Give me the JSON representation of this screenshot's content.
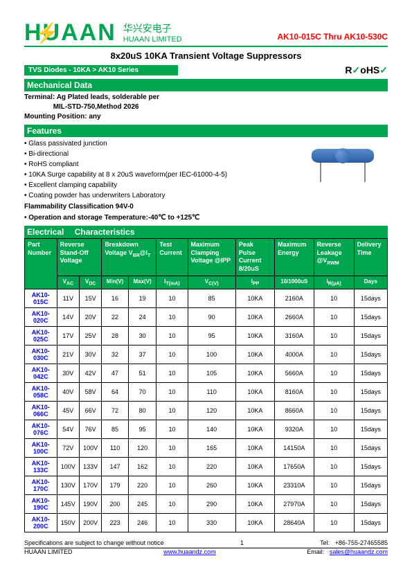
{
  "header": {
    "logo_main": "HUAAN",
    "logo_cn": "华兴安电子",
    "logo_en": "HUAAN LIMITED",
    "product_range": "AK10-015C Thru AK10-530C"
  },
  "title": "8x20uS 10KA Transient Voltage Suppressors",
  "breadcrumb": "TVS Diodes -    10KA > AK10 Series",
  "rohs": {
    "r": "R",
    "o": "o",
    "hs": "HS",
    "check1": "✓",
    "check2": "✓"
  },
  "sections": {
    "mechanical": {
      "title": "Mechanical Data",
      "terminal_label": "Terminal: ",
      "terminal": "Ag Plated leads, solderable per",
      "terminal_spec": "MIL-STD-750,Method 2026",
      "mounting_label": "Mounting Position: ",
      "mounting": "any"
    },
    "features": {
      "title": "Features",
      "items": [
        "Glass passivated junction",
        "Bi-directional",
        "RoHS compliant",
        "10KA Surge capability at 8 x 20uS waveform(per IEC-61000-4-5)",
        "Excellent clamping capability",
        "Coating powder has underwriters Laboratory"
      ],
      "flammability": "Flammability Classification 94V-0",
      "temperature": "Operation and storage Temperature:-40℃ to +125℃"
    },
    "electrical": {
      "title1": "Electrical",
      "title2": "Characteristics"
    }
  },
  "table": {
    "headers": {
      "part": "Part   Number",
      "reverse": "Reverse Stand-Off Voltage",
      "breakdown": "Breakdown Voltage VBR@IT",
      "test": "Test Current",
      "clamp": "Maximum Clamping Voltage @IPP",
      "peak": "Peak Pulse Current 8/20uS",
      "energy": "Maximum Energy",
      "leakage": "Reverse Leakage @VRWM",
      "delivery": "Delivery Time"
    },
    "subheaders": [
      "VAC",
      "VDC",
      "Min(V)",
      "Max(V)",
      "IT(mA)",
      "VC(V)",
      "IPP",
      "10/1000uS",
      "IR(μA)",
      "Days"
    ],
    "rows": [
      {
        "pn": "AK10-015C",
        "vac": "11V",
        "vdc": "15V",
        "min": "16",
        "max": "19",
        "it": "10",
        "vc": "85",
        "ipp": "10KA",
        "e": "2160A",
        "ir": "10",
        "d": "15days"
      },
      {
        "pn": "AK10-020C",
        "vac": "14V",
        "vdc": "20V",
        "min": "22",
        "max": "24",
        "it": "10",
        "vc": "90",
        "ipp": "10KA",
        "e": "2660A",
        "ir": "10",
        "d": "15days"
      },
      {
        "pn": "AK10-025C",
        "vac": "17V",
        "vdc": "25V",
        "min": "28",
        "max": "30",
        "it": "10",
        "vc": "95",
        "ipp": "10KA",
        "e": "3160A",
        "ir": "10",
        "d": "15days"
      },
      {
        "pn": "AK10-030C",
        "vac": "21V",
        "vdc": "30V",
        "min": "32",
        "max": "37",
        "it": "10",
        "vc": "100",
        "ipp": "10KA",
        "e": "4000A",
        "ir": "10",
        "d": "15days"
      },
      {
        "pn": "AK10-042C",
        "vac": "30V",
        "vdc": "42V",
        "min": "47",
        "max": "51",
        "it": "10",
        "vc": "105",
        "ipp": "10KA",
        "e": "5660A",
        "ir": "10",
        "d": "15days"
      },
      {
        "pn": "AK10-058C",
        "vac": "40V",
        "vdc": "58V",
        "min": "64",
        "max": "70",
        "it": "10",
        "vc": "110",
        "ipp": "10KA",
        "e": "8160A",
        "ir": "10",
        "d": "15days"
      },
      {
        "pn": "AK10-066C",
        "vac": "45V",
        "vdc": "66V",
        "min": "72",
        "max": "80",
        "it": "10",
        "vc": "120",
        "ipp": "10KA",
        "e": "8660A",
        "ir": "10",
        "d": "15days"
      },
      {
        "pn": "AK10-076C",
        "vac": "54V",
        "vdc": "76V",
        "min": "85",
        "max": "95",
        "it": "10",
        "vc": "140",
        "ipp": "10KA",
        "e": "9320A",
        "ir": "10",
        "d": "15days"
      },
      {
        "pn": "AK10-100C",
        "vac": "72V",
        "vdc": "100V",
        "min": "110",
        "max": "120",
        "it": "10",
        "vc": "165",
        "ipp": "10KA",
        "e": "14150A",
        "ir": "10",
        "d": "15days"
      },
      {
        "pn": "AK10-133C",
        "vac": "100V",
        "vdc": "133V",
        "min": "147",
        "max": "162",
        "it": "10",
        "vc": "220",
        "ipp": "10KA",
        "e": "17650A",
        "ir": "10",
        "d": "15days"
      },
      {
        "pn": "AK10-170C",
        "vac": "130V",
        "vdc": "170V",
        "min": "179",
        "max": "220",
        "it": "10",
        "vc": "260",
        "ipp": "10KA",
        "e": "23310A",
        "ir": "10",
        "d": "15days"
      },
      {
        "pn": "AK10-190C",
        "vac": "145V",
        "vdc": "190V",
        "min": "200",
        "max": "245",
        "it": "10",
        "vc": "290",
        "ipp": "10KA",
        "e": "27970A",
        "ir": "10",
        "d": "15days"
      },
      {
        "pn": "AK10-200C",
        "vac": "150V",
        "vdc": "200V",
        "min": "223",
        "max": "246",
        "it": "10",
        "vc": "330",
        "ipp": "10KA",
        "e": "28640A",
        "ir": "10",
        "d": "15days"
      }
    ]
  },
  "footer": {
    "spec_note": "Specifications are subject to change without notice",
    "page": "1",
    "tel_label": "Tel:",
    "tel": "+86-755-27465585",
    "company": "HUAAN LIMITED",
    "url": "www.huaandz.com",
    "email_label": "Email:",
    "email": "sales@huaandz.com"
  },
  "colors": {
    "green": "#00a64f",
    "red": "#ff0000",
    "link": "#0000ff"
  }
}
